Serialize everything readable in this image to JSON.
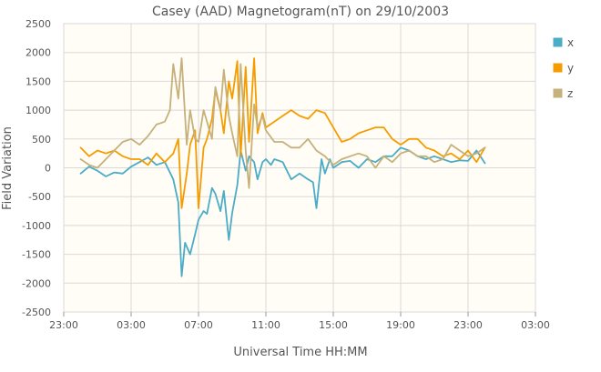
{
  "chart_data": {
    "type": "line",
    "title": "Casey (AAD) Magnetogram(nT) on 29/10/2003",
    "xlabel": "Universal Time HH:MM",
    "ylabel": "Field Variation",
    "x_unit": "hours from 23:00 on 28/10/2003",
    "xlim": [
      0,
      28
    ],
    "ylim": [
      -2500,
      2500
    ],
    "x_tick_labels": [
      "23:00",
      "03:00",
      "07:00",
      "11:00",
      "15:00",
      "19:00",
      "23:00",
      "03:00"
    ],
    "y_ticks": [
      -2500,
      -2000,
      -1500,
      -1000,
      -500,
      0,
      500,
      1000,
      1500,
      2000,
      2500
    ],
    "grid": true,
    "legend_position": "right",
    "series": [
      {
        "name": "x",
        "color": "#4bacc6",
        "x": [
          1.0,
          1.5,
          2.0,
          2.5,
          3.0,
          3.5,
          4.0,
          4.5,
          5.0,
          5.5,
          6.0,
          6.5,
          6.8,
          7.0,
          7.2,
          7.5,
          7.8,
          8.0,
          8.3,
          8.5,
          8.8,
          9.0,
          9.3,
          9.5,
          9.8,
          10.0,
          10.3,
          10.5,
          10.8,
          11.0,
          11.3,
          11.5,
          11.8,
          12.0,
          12.3,
          12.5,
          13.0,
          13.5,
          14.0,
          14.5,
          14.8,
          15.0,
          15.3,
          15.5,
          15.8,
          16.0,
          16.5,
          17.0,
          17.5,
          18.0,
          18.5,
          19.0,
          19.5,
          20.0,
          20.5,
          21.0,
          21.5,
          22.0,
          22.5,
          23.0,
          23.5,
          24.0,
          24.5,
          25.0
        ],
        "values": [
          -100,
          20,
          -50,
          -150,
          -80,
          -100,
          20,
          100,
          180,
          50,
          100,
          -200,
          -600,
          -1880,
          -1300,
          -1500,
          -1150,
          -900,
          -750,
          -800,
          -350,
          -450,
          -750,
          -400,
          -1250,
          -780,
          -300,
          300,
          -50,
          200,
          100,
          -200,
          100,
          150,
          50,
          150,
          100,
          -200,
          -100,
          -200,
          -250,
          -700,
          150,
          -100,
          150,
          0,
          100,
          120,
          0,
          150,
          100,
          200,
          200,
          350,
          300,
          200,
          150,
          200,
          150,
          100,
          130,
          120,
          300,
          80
        ]
      },
      {
        "name": "y",
        "color": "#f59c00",
        "x": [
          1.0,
          1.5,
          2.0,
          2.5,
          3.0,
          3.5,
          4.0,
          4.5,
          5.0,
          5.5,
          6.0,
          6.5,
          6.8,
          7.0,
          7.3,
          7.5,
          7.8,
          8.0,
          8.3,
          8.5,
          8.8,
          9.0,
          9.3,
          9.5,
          9.8,
          10.0,
          10.3,
          10.5,
          10.8,
          11.0,
          11.3,
          11.5,
          11.8,
          12.0,
          12.5,
          13.0,
          13.5,
          14.0,
          14.5,
          15.0,
          15.5,
          16.0,
          16.5,
          17.0,
          17.5,
          18.0,
          18.5,
          19.0,
          19.5,
          20.0,
          20.5,
          21.0,
          21.5,
          22.0,
          22.5,
          23.0,
          23.5,
          24.0,
          24.5,
          25.0
        ],
        "values": [
          350,
          200,
          300,
          250,
          300,
          200,
          150,
          150,
          50,
          250,
          100,
          250,
          500,
          -700,
          -100,
          400,
          650,
          -700,
          350,
          500,
          850,
          1350,
          1000,
          600,
          1500,
          1200,
          1850,
          200,
          1750,
          450,
          1900,
          600,
          950,
          700,
          800,
          900,
          1000,
          900,
          850,
          1000,
          950,
          700,
          450,
          500,
          600,
          650,
          700,
          700,
          500,
          400,
          500,
          500,
          350,
          300,
          200,
          250,
          150,
          300,
          100,
          350
        ]
      },
      {
        "name": "z",
        "color": "#c6b07c",
        "x": [
          1.0,
          1.5,
          2.0,
          2.5,
          3.0,
          3.5,
          4.0,
          4.5,
          5.0,
          5.5,
          6.0,
          6.3,
          6.5,
          6.8,
          7.0,
          7.3,
          7.5,
          7.8,
          8.0,
          8.3,
          8.5,
          8.8,
          9.0,
          9.3,
          9.5,
          9.8,
          10.0,
          10.3,
          10.5,
          10.8,
          11.0,
          11.3,
          11.5,
          11.8,
          12.0,
          12.5,
          13.0,
          13.5,
          14.0,
          14.5,
          15.0,
          15.5,
          16.0,
          16.5,
          17.0,
          17.5,
          18.0,
          18.5,
          19.0,
          19.5,
          20.0,
          20.5,
          21.0,
          21.5,
          22.0,
          22.5,
          23.0,
          23.5,
          24.0,
          24.5,
          25.0
        ],
        "values": [
          150,
          50,
          0,
          150,
          300,
          450,
          500,
          400,
          550,
          750,
          800,
          1000,
          1800,
          1200,
          1900,
          400,
          1000,
          500,
          450,
          1000,
          800,
          500,
          1400,
          1000,
          1700,
          900,
          600,
          200,
          1800,
          300,
          -350,
          1100,
          700,
          900,
          650,
          450,
          450,
          350,
          350,
          500,
          300,
          200,
          50,
          150,
          200,
          250,
          200,
          0,
          200,
          100,
          250,
          300,
          200,
          200,
          100,
          150,
          400,
          300,
          200,
          250,
          350
        ]
      }
    ]
  }
}
